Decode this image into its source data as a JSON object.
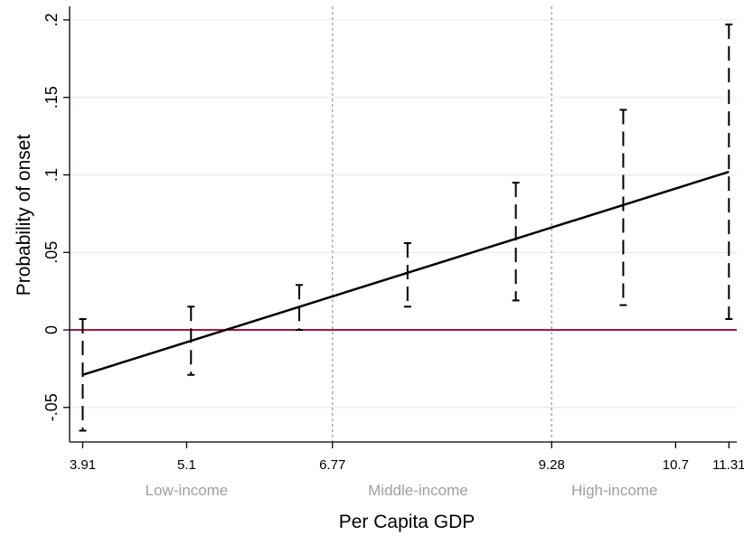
{
  "chart_data": {
    "type": "line",
    "xlabel": "Per Capita GDP",
    "ylabel": "Probability of onset",
    "xlim": [
      3.76,
      11.4
    ],
    "ylim": [
      -0.073,
      0.2
    ],
    "x_ticks": [
      3.91,
      5.1,
      6.77,
      9.28,
      10.7,
      11.31
    ],
    "y_ticks": [
      {
        "value": -0.05,
        "label": "-.05"
      },
      {
        "value": 0,
        "label": "0"
      },
      {
        "value": 0.05,
        "label": ".05"
      },
      {
        "value": 0.1,
        "label": ".1"
      },
      {
        "value": 0.15,
        "label": ".15"
      },
      {
        "value": 0.2,
        "label": ".2"
      }
    ],
    "grid": "horizontal",
    "income_groups": [
      {
        "label": "Low-income",
        "x": 5.1
      },
      {
        "label": "Middle-income",
        "x": 7.75
      },
      {
        "label": "High-income",
        "x": 10.0
      }
    ],
    "group_boundaries": [
      6.77,
      9.28
    ],
    "reference_line": 0,
    "fit_line": {
      "x": [
        3.91,
        11.31
      ],
      "y": [
        -0.029,
        0.102
      ]
    },
    "confidence_intervals": [
      {
        "x": 3.91,
        "lower": -0.065,
        "upper": 0.007
      },
      {
        "x": 5.15,
        "lower": -0.029,
        "upper": 0.015
      },
      {
        "x": 6.39,
        "lower": 0.0,
        "upper": 0.029
      },
      {
        "x": 7.63,
        "lower": 0.015,
        "upper": 0.056
      },
      {
        "x": 8.87,
        "lower": 0.019,
        "upper": 0.095
      },
      {
        "x": 10.1,
        "lower": 0.016,
        "upper": 0.142
      },
      {
        "x": 11.31,
        "lower": 0.007,
        "upper": 0.197
      }
    ],
    "colors": {
      "fit": "#000000",
      "ci": "#000000",
      "reference": "#b0123f",
      "grid": "#d9ecec",
      "boundary": "#a0a0a0",
      "axis": "#000000",
      "group_label": "#a0a0a0"
    }
  }
}
